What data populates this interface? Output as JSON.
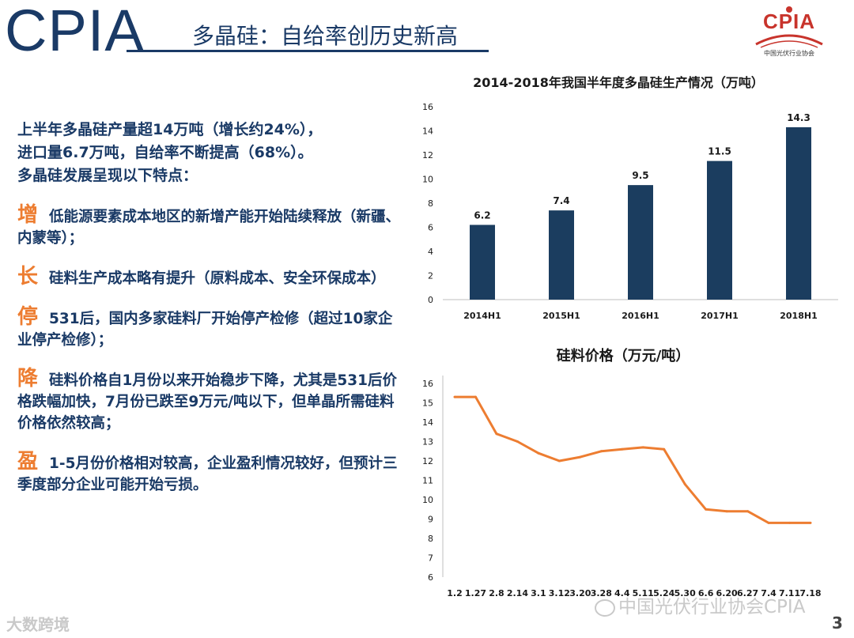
{
  "header": {
    "wordmark": "CPIA",
    "title": "多晶硅：自给率创历史新高",
    "logo_text": "CPIA",
    "logo_subtitle": "中国光伏行业协会"
  },
  "text": {
    "intro": [
      "上半年多晶硅产量超14万吨（增长约24%），",
      "进口量6.7万吨，自给率不断提高（68%）。",
      "多晶硅发展呈现以下特点："
    ],
    "points": [
      {
        "key": "增",
        "body": "低能源要素成本地区的新增产能开始陆续释放（新疆、内蒙等）；"
      },
      {
        "key": "长",
        "body": "硅料生产成本略有提升（原料成本、安全环保成本）"
      },
      {
        "key": "停",
        "body": "531后，国内多家硅料厂开始停产检修（超过10家企业停产检修）；"
      },
      {
        "key": "降",
        "body": "硅料价格自1月份以来开始稳步下降，尤其是531后价格跌幅加快，7月份已跌至9万元/吨以下，但单晶所需硅料价格依然较高；"
      },
      {
        "key": "盈",
        "body": "1-5月份价格相对较高，企业盈利情况较好，但预计三季度部分企业可能开始亏损。"
      }
    ]
  },
  "chart_data": [
    {
      "type": "bar",
      "title": "2014-2018年我国半年度多晶硅生产情况（万吨）",
      "categories": [
        "2014H1",
        "2015H1",
        "2016H1",
        "2017H1",
        "2018H1"
      ],
      "values": [
        6.2,
        7.4,
        9.5,
        11.5,
        14.3
      ],
      "data_labels": [
        "6.2",
        "7.4",
        "9.5",
        "11.5",
        "14.3"
      ],
      "ylim": [
        0,
        16
      ],
      "yticks": [
        0,
        2,
        4,
        6,
        8,
        10,
        12,
        14,
        16
      ],
      "color": "#1b3d5f",
      "grid": false
    },
    {
      "type": "line",
      "title": "硅料价格（万元/吨）",
      "x": [
        "1.2",
        "1.27",
        "2.8",
        "2.14",
        "3.1",
        "3.12",
        "3.20",
        "3.28",
        "4.4",
        "5.11",
        "5.24",
        "5.30",
        "6.6",
        "6.20",
        "6.27",
        "7.4",
        "7.11",
        "7.18"
      ],
      "values": [
        15.3,
        15.3,
        13.4,
        13.0,
        12.4,
        12.0,
        12.2,
        12.5,
        12.6,
        12.7,
        12.6,
        10.8,
        9.5,
        9.4,
        9.4,
        8.8,
        8.8,
        8.8
      ],
      "ylim": [
        6,
        16
      ],
      "yticks": [
        6,
        7,
        8,
        9,
        10,
        11,
        12,
        13,
        14,
        15,
        16
      ],
      "color": "#ed7d31",
      "grid": false
    }
  ],
  "watermarks": {
    "left": "大数跨境",
    "right": "中国光伏行业协会CPIA"
  },
  "page_number": "3"
}
